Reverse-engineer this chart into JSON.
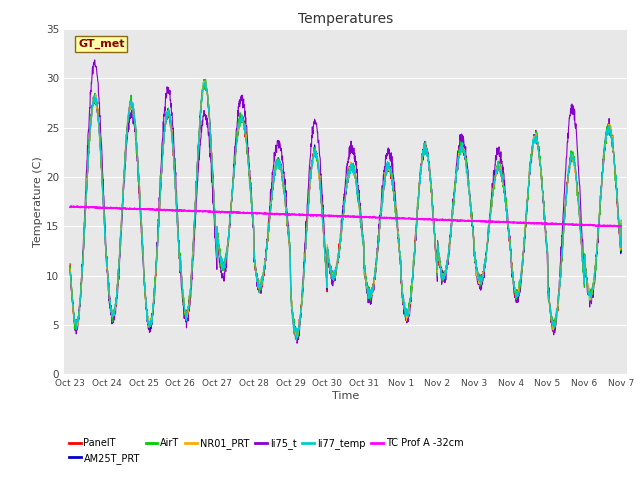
{
  "title": "Temperatures",
  "xlabel": "Time",
  "ylabel": "Temperature (C)",
  "ylim": [
    0,
    35
  ],
  "background_color": "#e8e8e8",
  "series_colors": {
    "PanelT": "#ff0000",
    "AM25T_PRT": "#0000cc",
    "AirT": "#00cc00",
    "NR01_PRT": "#ffaa00",
    "li75_t": "#8800cc",
    "li77_temp": "#00cccc",
    "TC_Prof": "#ff00ff"
  },
  "xtick_labels": [
    "Oct 23",
    "Oct 24",
    "Oct 25",
    "Oct 26",
    "Oct 27",
    "Oct 28",
    "Oct 29",
    "Oct 30",
    "Oct 31",
    "Nov 1",
    "Nov 2",
    "Nov 3",
    "Nov 4",
    "Nov 5",
    "Nov 6",
    "Nov 7"
  ],
  "xtick_positions": [
    0,
    24,
    48,
    72,
    96,
    120,
    144,
    168,
    192,
    216,
    240,
    264,
    288,
    312,
    336,
    360
  ],
  "ytick_labels": [
    "0",
    "5",
    "10",
    "15",
    "20",
    "25",
    "30",
    "35"
  ],
  "ytick_positions": [
    0,
    5,
    10,
    15,
    20,
    25,
    30,
    35
  ],
  "gt_met_label": "GT_met",
  "legend_items": [
    {
      "label": "PanelT",
      "color": "#ff0000"
    },
    {
      "label": "AM25T_PRT",
      "color": "#0000cc"
    },
    {
      "label": "AirT",
      "color": "#00cc00"
    },
    {
      "label": "NR01_PRT",
      "color": "#ffaa00"
    },
    {
      "label": "li75_t",
      "color": "#8800cc"
    },
    {
      "label": "li77_temp",
      "color": "#00cccc"
    },
    {
      "label": "TC Prof A -32cm",
      "color": "#ff00ff"
    }
  ],
  "day_peaks": [
    28,
    27.5,
    26.5,
    29.5,
    26,
    21.5,
    22.5,
    21,
    21,
    23,
    23,
    21,
    24,
    22,
    25,
    16
  ],
  "night_mins": [
    5,
    6,
    5,
    6,
    11,
    9,
    4,
    10,
    8,
    6,
    10,
    9.5,
    8,
    5,
    8,
    15
  ],
  "li75_day_peaks": [
    31.5,
    26.5,
    29,
    26.5,
    28,
    23.5,
    25.5,
    23,
    22.5,
    23,
    24,
    22.5,
    24,
    27,
    25,
    16
  ],
  "li75_night_mins": [
    4.5,
    5.5,
    4.5,
    5.5,
    10,
    8.5,
    3.5,
    9.5,
    7.5,
    5.5,
    9.5,
    9,
    7.5,
    4.5,
    7.5,
    14.5
  ],
  "tc_prof_start": 17.0,
  "tc_prof_end": 15.0,
  "hours_total": 360
}
